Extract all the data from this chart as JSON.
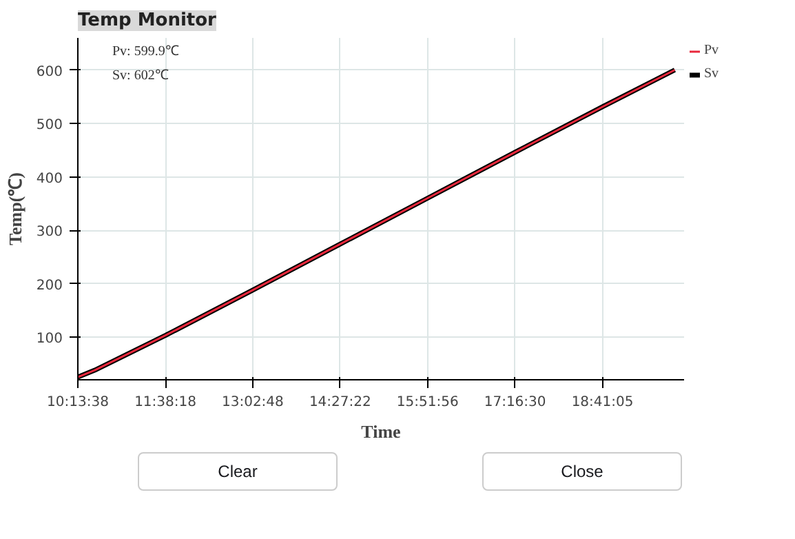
{
  "chart_data": {
    "type": "line",
    "title": "Temp Monitor",
    "xlabel": "Time",
    "ylabel": "Temp(℃)",
    "x": [
      10.2272,
      10.5,
      11.6383,
      13.0467,
      14.4561,
      15.8656,
      17.275,
      18.6847,
      19.85
    ],
    "series": [
      {
        "name": "Pv",
        "color": "#e8283c",
        "values": [
          25,
          38,
          103,
          188,
          274,
          360,
          446,
          531,
          600
        ]
      },
      {
        "name": "Sv",
        "color": "#000000",
        "values": [
          25,
          38,
          103,
          188,
          274,
          360,
          446,
          531,
          600
        ]
      }
    ],
    "xlim": [
      10.2272,
      20.0
    ],
    "ylim": [
      20,
      660
    ],
    "xticks": [
      {
        "value": 10.2272,
        "label": "10:13:38"
      },
      {
        "value": 11.6383,
        "label": "11:38:18"
      },
      {
        "value": 13.0467,
        "label": "13:02:48"
      },
      {
        "value": 14.4561,
        "label": "14:27:22"
      },
      {
        "value": 15.8656,
        "label": "15:51:56"
      },
      {
        "value": 17.275,
        "label": "17:16:30"
      },
      {
        "value": 18.6847,
        "label": "18:41:05"
      }
    ],
    "yticks": [
      100,
      200,
      300,
      400,
      500,
      600
    ],
    "grid": true,
    "legend": "top right",
    "marker": "none",
    "line_style": "solid",
    "annotations": [
      "Pv: 599.9℃",
      "Sv: 602℃",
      "Clear",
      "Close"
    ]
  }
}
